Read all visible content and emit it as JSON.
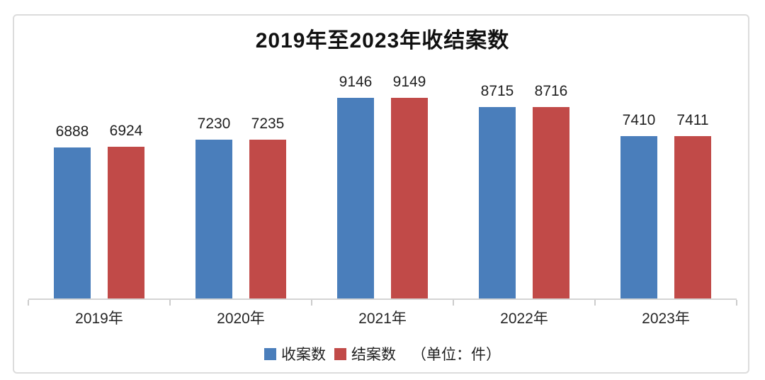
{
  "chart_data": {
    "type": "bar",
    "title": "2019年至2023年收结案数",
    "categories": [
      "2019年",
      "2020年",
      "2021年",
      "2022年",
      "2023年"
    ],
    "series": [
      {
        "name": "收案数",
        "color": "#4A7EBB",
        "values": [
          6888,
          7230,
          9146,
          8715,
          7410
        ]
      },
      {
        "name": "结案数",
        "color": "#C14A48",
        "values": [
          6924,
          7235,
          9149,
          8716,
          7411
        ]
      }
    ],
    "unit_label": "（单位：件）",
    "ylim": [
      0,
      9149
    ],
    "grid": false,
    "legend_position": "bottom",
    "data_labels": true,
    "xlabel": "",
    "ylabel": ""
  },
  "colors": {
    "series_received": "#4A7EBB",
    "series_closed": "#C14A48",
    "axis_line": "#d4d4d4",
    "tick": "#cccccc",
    "frame_border": "#dcdcdc",
    "label_text": "#1f1f1f"
  }
}
